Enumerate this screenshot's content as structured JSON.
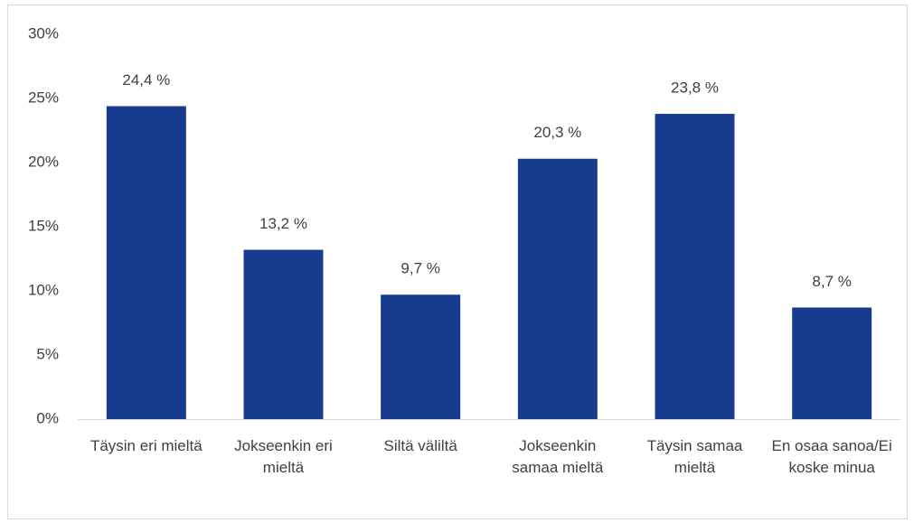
{
  "chart_data": {
    "type": "bar",
    "categories": [
      "Täysin eri mieltä",
      "Jokseenkin eri mieltä",
      "Siltä väliltä",
      "Jokseenkin samaa mieltä",
      "Täysin samaa mieltä",
      "En osaa sanoa/Ei koske minua"
    ],
    "values": [
      24.4,
      13.2,
      9.7,
      20.3,
      23.8,
      8.7
    ],
    "value_labels": [
      "24,4 %",
      "13,2 %",
      "9,7 %",
      "20,3 %",
      "23,8 %",
      "8,7 %"
    ],
    "color": "#173c8f",
    "ylim": [
      0,
      30
    ],
    "yticks": [
      {
        "value": 0,
        "label": "0%"
      },
      {
        "value": 5,
        "label": "5%"
      },
      {
        "value": 10,
        "label": "10%"
      },
      {
        "value": 15,
        "label": "15%"
      },
      {
        "value": 20,
        "label": "20%"
      },
      {
        "value": 25,
        "label": "25%"
      },
      {
        "value": 30,
        "label": "30%"
      }
    ],
    "grid": false
  }
}
